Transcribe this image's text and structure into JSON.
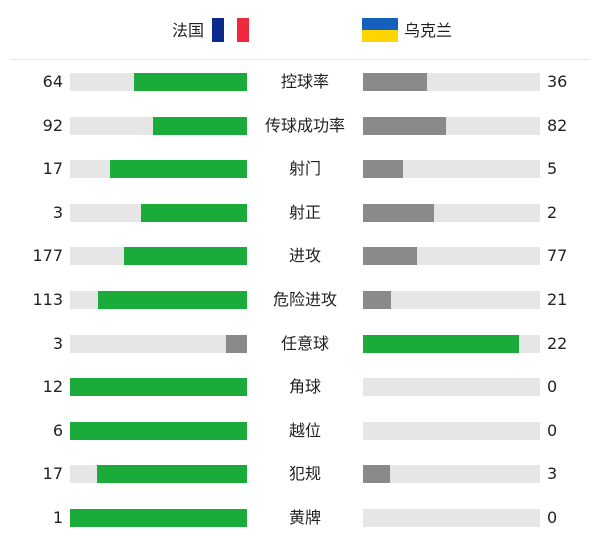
{
  "header": {
    "home_team": "法国",
    "away_team": "乌克兰",
    "home_flag_colors": [
      "#0a2a8c",
      "#ffffff",
      "#ee2a3c"
    ],
    "away_flag_colors": [
      "#1560bd",
      "#ffd500"
    ]
  },
  "colors": {
    "leading": "#1aab3a",
    "trailing": "#8a8a8a",
    "track": "#e6e6e6"
  },
  "stats": [
    {
      "label": "控球率",
      "home": 64,
      "away": 36
    },
    {
      "label": "传球成功率",
      "home": 92,
      "away": 82
    },
    {
      "label": "射门",
      "home": 17,
      "away": 5
    },
    {
      "label": "射正",
      "home": 3,
      "away": 2
    },
    {
      "label": "进攻",
      "home": 177,
      "away": 77
    },
    {
      "label": "危险进攻",
      "home": 113,
      "away": 21
    },
    {
      "label": "任意球",
      "home": 3,
      "away": 22
    },
    {
      "label": "角球",
      "home": 12,
      "away": 0
    },
    {
      "label": "越位",
      "home": 6,
      "away": 0
    },
    {
      "label": "犯规",
      "home": 17,
      "away": 3
    },
    {
      "label": "黄牌",
      "home": 1,
      "away": 0
    }
  ]
}
